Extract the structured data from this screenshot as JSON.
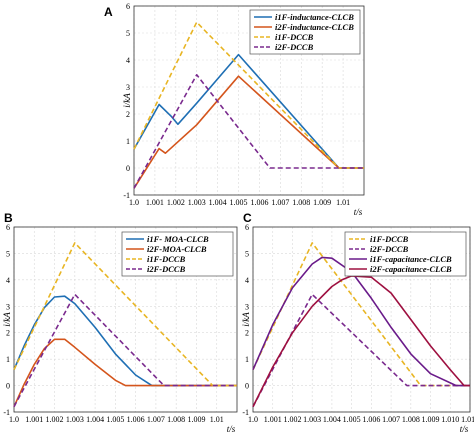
{
  "chart_data": [
    {
      "panel": "A",
      "type": "line",
      "xlabel": "t/s",
      "ylabel": "i/kA",
      "xlim": [
        1.0,
        1.011
      ],
      "ylim": [
        -1,
        6
      ],
      "xticks": [
        "1.0",
        "1.001",
        "1.002",
        "1.003",
        "1.004",
        "1.005",
        "1.006",
        "1.007",
        "1.008",
        "1.009",
        "1.01"
      ],
      "yticks": [
        "-1",
        "0",
        "1",
        "2",
        "3",
        "4",
        "5",
        "6"
      ],
      "grid": true,
      "legend_position": "top-right",
      "series": [
        {
          "name": "i1F-inductance-CLCB",
          "color": "#1f6fb4",
          "dash": "solid",
          "x": [
            1.0,
            1.0012,
            1.0018,
            1.0021,
            1.003,
            1.005,
            1.0098,
            1.011
          ],
          "y": [
            0.7,
            2.35,
            1.9,
            1.62,
            2.4,
            4.2,
            0.0,
            0.0
          ]
        },
        {
          "name": "i2F-inductance-CLCB",
          "color": "#d4551c",
          "dash": "solid",
          "x": [
            1.0,
            1.0012,
            1.0015,
            1.003,
            1.005,
            1.0098,
            1.011
          ],
          "y": [
            -0.75,
            0.72,
            0.55,
            1.6,
            3.4,
            0.0,
            0.0
          ]
        },
        {
          "name": "i1F-DCCB",
          "color": "#e8b523",
          "dash": "dashed",
          "x": [
            1.0,
            1.003,
            1.0098,
            1.011
          ],
          "y": [
            0.7,
            5.4,
            0.0,
            0.0
          ]
        },
        {
          "name": "i2F-DCCB",
          "color": "#7a2a8e",
          "dash": "dashed",
          "x": [
            1.0,
            1.003,
            1.0065,
            1.011
          ],
          "y": [
            -0.75,
            3.45,
            0.0,
            0.0
          ]
        }
      ]
    },
    {
      "panel": "B",
      "type": "line",
      "xlabel": "t/s",
      "ylabel": "i/kA",
      "xlim": [
        1.0,
        1.011
      ],
      "ylim": [
        -1,
        6
      ],
      "xticks": [
        "1.0",
        "1.001",
        "1.002",
        "1.003",
        "1.004",
        "1.005",
        "1.006",
        "1.007",
        "1.008",
        "1.009",
        "1.01"
      ],
      "yticks": [
        "-1",
        "0",
        "1",
        "2",
        "3",
        "4",
        "5",
        "6"
      ],
      "grid": true,
      "legend_position": "top-right",
      "series": [
        {
          "name": "i1F- MOA-CLCB",
          "color": "#1f6fb4",
          "dash": "solid",
          "x": [
            1.0,
            1.0005,
            1.001,
            1.0015,
            1.002,
            1.0025,
            1.003,
            1.004,
            1.005,
            1.006,
            1.0068,
            1.011
          ],
          "y": [
            0.6,
            1.5,
            2.3,
            2.95,
            3.35,
            3.38,
            3.1,
            2.2,
            1.2,
            0.4,
            0.0,
            0.0
          ]
        },
        {
          "name": "i2F-MOA-CLCB",
          "color": "#d4551c",
          "dash": "solid",
          "x": [
            1.0,
            1.0005,
            1.001,
            1.0015,
            1.002,
            1.0025,
            1.003,
            1.004,
            1.005,
            1.0055,
            1.011
          ],
          "y": [
            -0.8,
            0.05,
            0.8,
            1.4,
            1.75,
            1.75,
            1.45,
            0.8,
            0.2,
            0.0,
            0.0
          ]
        },
        {
          "name": "i1F-DCCB",
          "color": "#e8b523",
          "dash": "dashed",
          "x": [
            1.0,
            1.003,
            1.0098,
            1.011
          ],
          "y": [
            0.6,
            5.4,
            0.0,
            0.0
          ]
        },
        {
          "name": "i2F-DCCB",
          "color": "#7a2a8e",
          "dash": "dashed",
          "x": [
            1.0,
            1.003,
            1.0074,
            1.011
          ],
          "y": [
            -0.8,
            3.45,
            0.0,
            0.0
          ]
        }
      ]
    },
    {
      "panel": "C",
      "type": "line",
      "xlabel": "t/s",
      "ylabel": "i/kA",
      "xlim": [
        1.0,
        1.011
      ],
      "ylim": [
        -1,
        6
      ],
      "xticks": [
        "1.0",
        "1.001",
        "1.002",
        "1.003",
        "1.004",
        "1.005",
        "1.006",
        "1.007",
        "1.008",
        "1.009",
        "1.010",
        "1.011"
      ],
      "yticks": [
        "-1",
        "0",
        "1",
        "2",
        "3",
        "4",
        "5",
        "6"
      ],
      "grid": true,
      "legend_position": "top-right",
      "series": [
        {
          "name": "i1F-DCCB",
          "color": "#e8b523",
          "dash": "dashed",
          "x": [
            1.0,
            1.003,
            1.0085,
            1.011
          ],
          "y": [
            0.6,
            5.4,
            0.0,
            0.0
          ]
        },
        {
          "name": "i2F-DCCB",
          "color": "#7a2a8e",
          "dash": "dashed",
          "x": [
            1.0,
            1.003,
            1.0078,
            1.011
          ],
          "y": [
            -0.8,
            3.45,
            0.0,
            0.0
          ]
        },
        {
          "name": "i1F-capacitance-CLCB",
          "color": "#6a1b8a",
          "dash": "solid",
          "x": [
            1.0,
            1.001,
            1.002,
            1.003,
            1.0035,
            1.004,
            1.005,
            1.006,
            1.007,
            1.008,
            1.009,
            1.0103,
            1.011
          ],
          "y": [
            0.6,
            2.3,
            3.7,
            4.6,
            4.85,
            4.82,
            4.3,
            3.3,
            2.2,
            1.2,
            0.45,
            0.0,
            0.0
          ]
        },
        {
          "name": "i2F-capacitance-CLCB",
          "color": "#9e1040",
          "dash": "solid",
          "x": [
            1.0,
            1.001,
            1.002,
            1.003,
            1.004,
            1.0045,
            1.005,
            1.006,
            1.007,
            1.008,
            1.009,
            1.01,
            1.0107,
            1.011
          ],
          "y": [
            -0.8,
            0.7,
            2.0,
            3.0,
            3.75,
            4.0,
            4.15,
            4.1,
            3.5,
            2.5,
            1.5,
            0.6,
            0.0,
            0.0
          ]
        }
      ]
    }
  ],
  "panels_layout": {
    "A": {
      "label": "A"
    },
    "B": {
      "label": "B"
    },
    "C": {
      "label": "C"
    }
  }
}
